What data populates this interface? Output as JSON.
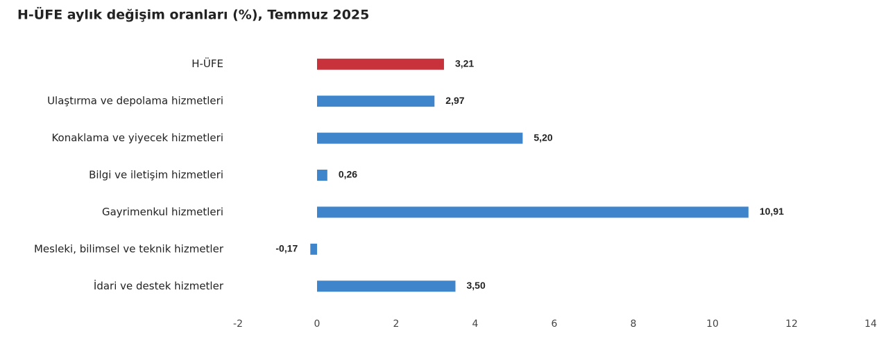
{
  "chart_data": {
    "type": "hbar",
    "title": "H-ÜFE aylık değişim oranları (%), Temmuz 2025",
    "categories": [
      "H-ÜFE",
      "Ulaştırma ve depolama hizmetleri",
      "Konaklama ve yiyecek hizmetleri",
      "Bilgi ve iletişim hizmetleri",
      "Gayrimenkul hizmetleri",
      "Mesleki, bilimsel ve teknik hizmetler",
      "İdari ve destek hizmetler"
    ],
    "values": [
      3.21,
      2.97,
      5.2,
      0.26,
      10.91,
      -0.17,
      3.5
    ],
    "value_labels": [
      "3,21",
      "2,97",
      "5,20",
      "0,26",
      "10,91",
      "-0,17",
      "3,50"
    ],
    "colors": [
      "#c8323a",
      "#3f85cc",
      "#3f85cc",
      "#3f85cc",
      "#3f85cc",
      "#3f85cc",
      "#3f85cc"
    ],
    "xlim": [
      -2,
      14
    ],
    "xticks": [
      -2,
      0,
      2,
      4,
      6,
      8,
      10,
      12,
      14
    ],
    "grid": false
  }
}
